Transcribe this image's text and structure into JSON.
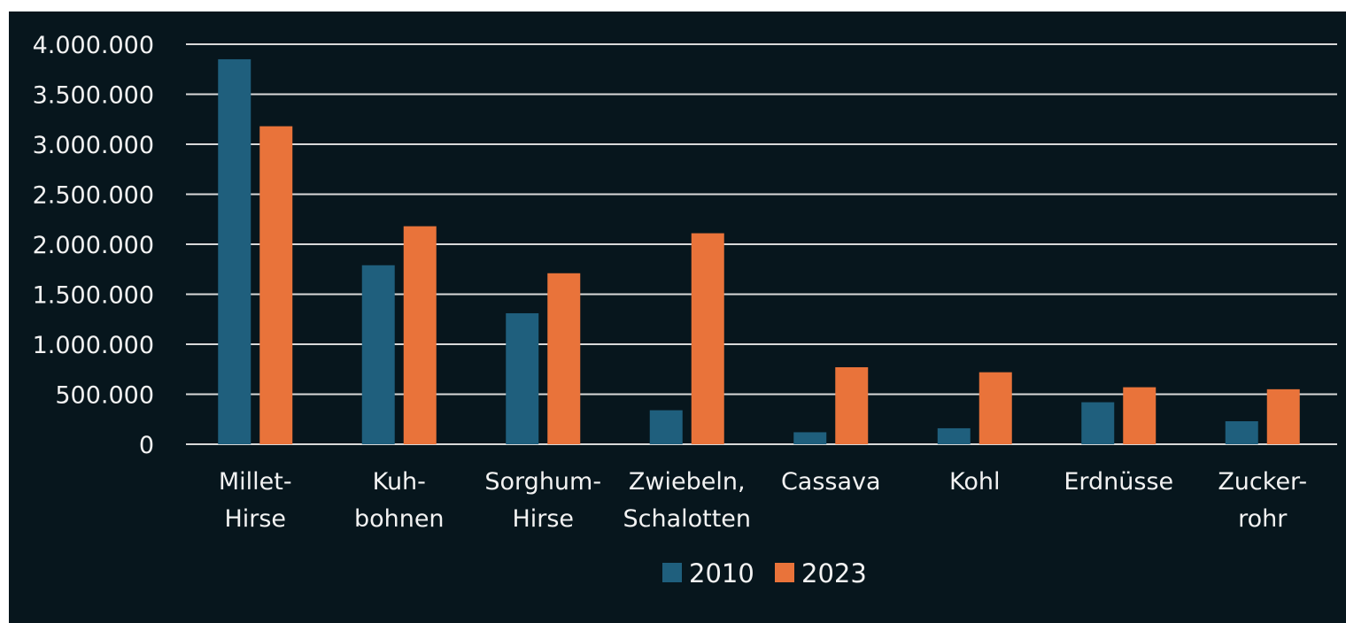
{
  "chart_data": {
    "type": "bar",
    "categories": [
      [
        "Millet-",
        "Hirse"
      ],
      [
        "Kuh-",
        "bohnen"
      ],
      [
        "Sorghum-",
        "Hirse"
      ],
      [
        "Zwiebeln,",
        "Schalotten"
      ],
      [
        "Cassava"
      ],
      [
        "Kohl"
      ],
      [
        "Erdnüsse"
      ],
      [
        "Zucker-",
        "rohr"
      ]
    ],
    "series": [
      {
        "name": "2010",
        "color": "#1f5f7d",
        "values": [
          3850000,
          1790000,
          1310000,
          340000,
          120000,
          160000,
          420000,
          230000
        ]
      },
      {
        "name": "2023",
        "color": "#e9733a",
        "values": [
          3180000,
          2180000,
          1710000,
          2110000,
          770000,
          720000,
          570000,
          550000
        ]
      }
    ],
    "y_ticks": [
      "0",
      "500.000",
      "1.000.000",
      "1.500.000",
      "2.000.000",
      "2.500.000",
      "3.000.000",
      "3.500.000",
      "4.000.000"
    ],
    "ylim": [
      0,
      4000000
    ],
    "grid": true,
    "legend_position": "bottom",
    "title": "",
    "xlabel": "",
    "ylabel": ""
  },
  "colors": {
    "background": "#07161d",
    "grid": "#d9d9d9",
    "text": "#f2f2f2"
  }
}
